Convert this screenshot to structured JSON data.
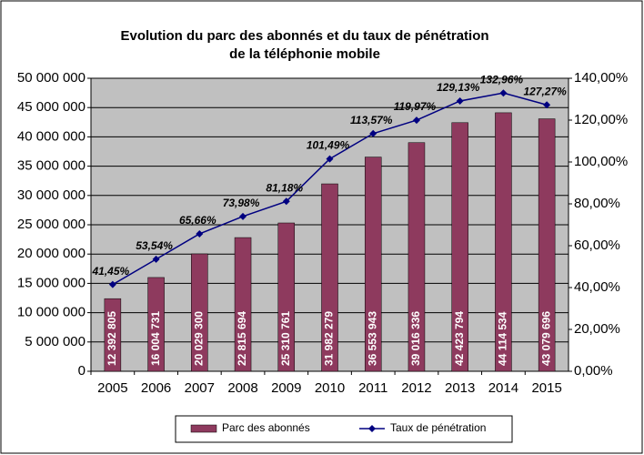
{
  "chart_data": {
    "type": "bar",
    "title": [
      "Evolution du parc des abonnés et du taux de pénétration",
      "de la téléphonie mobile"
    ],
    "categories": [
      "2005",
      "2006",
      "2007",
      "2008",
      "2009",
      "2010",
      "2011",
      "2012",
      "2013",
      "2014",
      "2015"
    ],
    "series": [
      {
        "name": "Parc des abonnés",
        "color": "#8e3a5e",
        "values": [
          12392805,
          16004731,
          20029300,
          22815694,
          25310761,
          31982279,
          36553943,
          39016336,
          42423794,
          44114534,
          43079696
        ],
        "value_labels": [
          "12 392 805",
          "16 004 731",
          "20 029 300",
          "22 815 694",
          "25 310 761",
          "31 982 279",
          "36 553 943",
          "39 016 336",
          "42 423 794",
          "44 114 534",
          "43 079 696"
        ]
      },
      {
        "name": "Taux de pénétration",
        "type": "line",
        "axis": "y2",
        "color": "#000080",
        "values": [
          41.45,
          53.54,
          65.66,
          73.98,
          81.18,
          101.49,
          113.57,
          119.97,
          129.13,
          132.96,
          127.27
        ],
        "value_labels": [
          "41,45%",
          "53,54%",
          "65,66%",
          "73,98%",
          "81,18%",
          "101,49%",
          "113,57%",
          "119,97%",
          "129,13%",
          "132,96%",
          "127,27%"
        ]
      }
    ],
    "ylim": [
      0,
      50000000
    ],
    "yticks": [
      0,
      {
        "value": 5000000,
        "label": "5 000 000"
      },
      {
        "value": 10000000,
        "label": "10 000 000"
      },
      {
        "value": 15000000,
        "label": "15 000 000"
      },
      {
        "value": 20000000,
        "label": "20 000 000"
      },
      {
        "value": 25000000,
        "label": "25 000 000"
      },
      {
        "value": 30000000,
        "label": "30 000 000"
      },
      {
        "value": 35000000,
        "label": "35 000 000"
      },
      {
        "value": 40000000,
        "label": "40 000 000"
      },
      {
        "value": 45000000,
        "label": "45 000 000"
      },
      {
        "value": 50000000,
        "label": "50 000 000"
      }
    ],
    "y2lim": [
      0,
      140
    ],
    "y2ticks": [
      {
        "value": 0,
        "label": "0,00%"
      },
      {
        "value": 20,
        "label": "20,00%"
      },
      {
        "value": 40,
        "label": "40,00%"
      },
      {
        "value": 60,
        "label": "60,00%"
      },
      {
        "value": 80,
        "label": "80,00%"
      },
      {
        "value": 100,
        "label": "100,00%"
      },
      {
        "value": 120,
        "label": "120,00%"
      },
      {
        "value": 140,
        "label": "140,00%"
      }
    ],
    "grid": true,
    "legend": "bottom",
    "plot_background": "#c0c0c0"
  }
}
